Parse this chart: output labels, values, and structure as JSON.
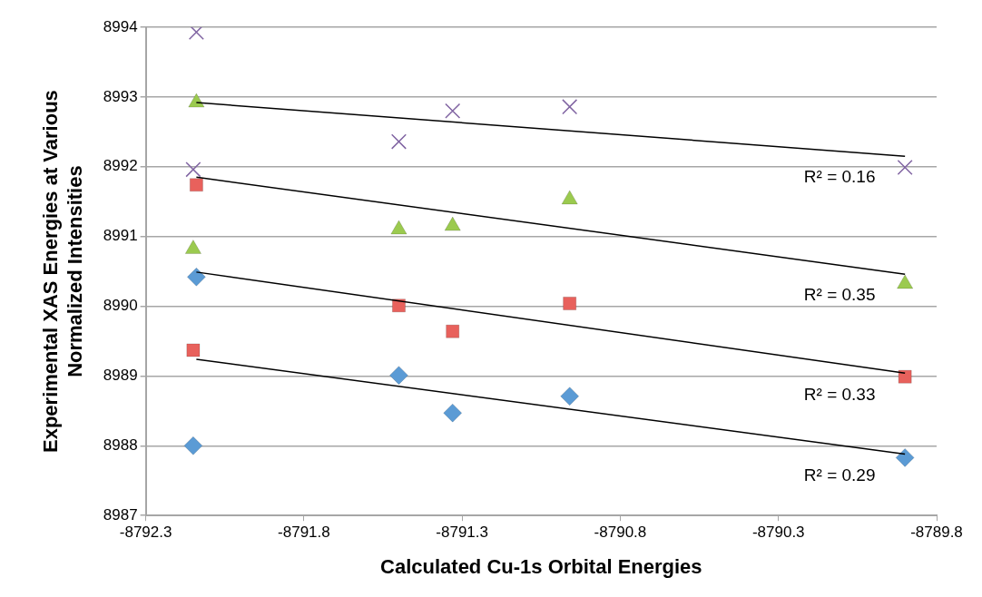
{
  "chart_data": {
    "type": "scatter",
    "xlabel": "Calculated Cu-1s Orbital Energies",
    "ylabel": "Experimental XAS Energies at Various\nNormalized Intensities",
    "xlim": [
      -8792.3,
      -8789.8
    ],
    "xticks": [
      -8792.3,
      -8791.8,
      -8791.3,
      -8790.8,
      -8790.3,
      -8789.8
    ],
    "ylim": [
      8987,
      8994
    ],
    "yticks": [
      8987,
      8988,
      8989,
      8990,
      8991,
      8992,
      8993,
      8994
    ],
    "grid": "y",
    "legend": false,
    "series": [
      {
        "color": "#5b9bd5",
        "marker": "diamond",
        "x": [
          -8792.15,
          -8792.14,
          -8791.5,
          -8791.33,
          -8790.96,
          -8789.9
        ],
        "values": [
          8988.0,
          8990.42,
          8989.01,
          8988.47,
          8988.71,
          8987.83
        ]
      },
      {
        "color": "#e8615c",
        "marker": "square",
        "x": [
          -8792.15,
          -8792.14,
          -8791.5,
          -8791.33,
          -8790.96,
          -8789.9
        ],
        "values": [
          8989.37,
          8991.74,
          8990.01,
          8989.64,
          8990.04,
          8988.99
        ]
      },
      {
        "color": "#9bca4f",
        "marker": "triangle",
        "x": [
          -8792.15,
          -8792.14,
          -8791.5,
          -8791.33,
          -8790.96,
          -8789.9
        ],
        "values": [
          8990.82,
          8992.92,
          8991.1,
          8991.15,
          8991.53,
          8990.32
        ]
      },
      {
        "color": "#8064a2",
        "marker": "cross",
        "x": [
          -8792.15,
          -8792.14,
          -8791.5,
          -8791.33,
          -8790.96,
          -8789.9
        ],
        "values": [
          8991.96,
          8993.93,
          8992.36,
          8992.8,
          8992.86,
          8991.99
        ]
      },
      {
        "type": "line",
        "color": "#000000",
        "marker": "none",
        "x": [
          -8792.14,
          -8789.9
        ],
        "values": [
          8989.24,
          8987.88
        ]
      },
      {
        "type": "line",
        "color": "#000000",
        "marker": "none",
        "x": [
          -8792.14,
          -8789.9
        ],
        "values": [
          8990.49,
          8989.04
        ]
      },
      {
        "type": "line",
        "color": "#000000",
        "marker": "none",
        "x": [
          -8792.14,
          -8789.9
        ],
        "values": [
          8991.85,
          8990.46
        ]
      },
      {
        "type": "line",
        "color": "#000000",
        "marker": "none",
        "x": [
          -8792.14,
          -8789.9
        ],
        "values": [
          8992.92,
          8992.15
        ]
      }
    ],
    "annotations": [
      "R² = 0.29",
      "R² = 0.33",
      "R² = 0.35",
      "R² = 0.16"
    ]
  }
}
